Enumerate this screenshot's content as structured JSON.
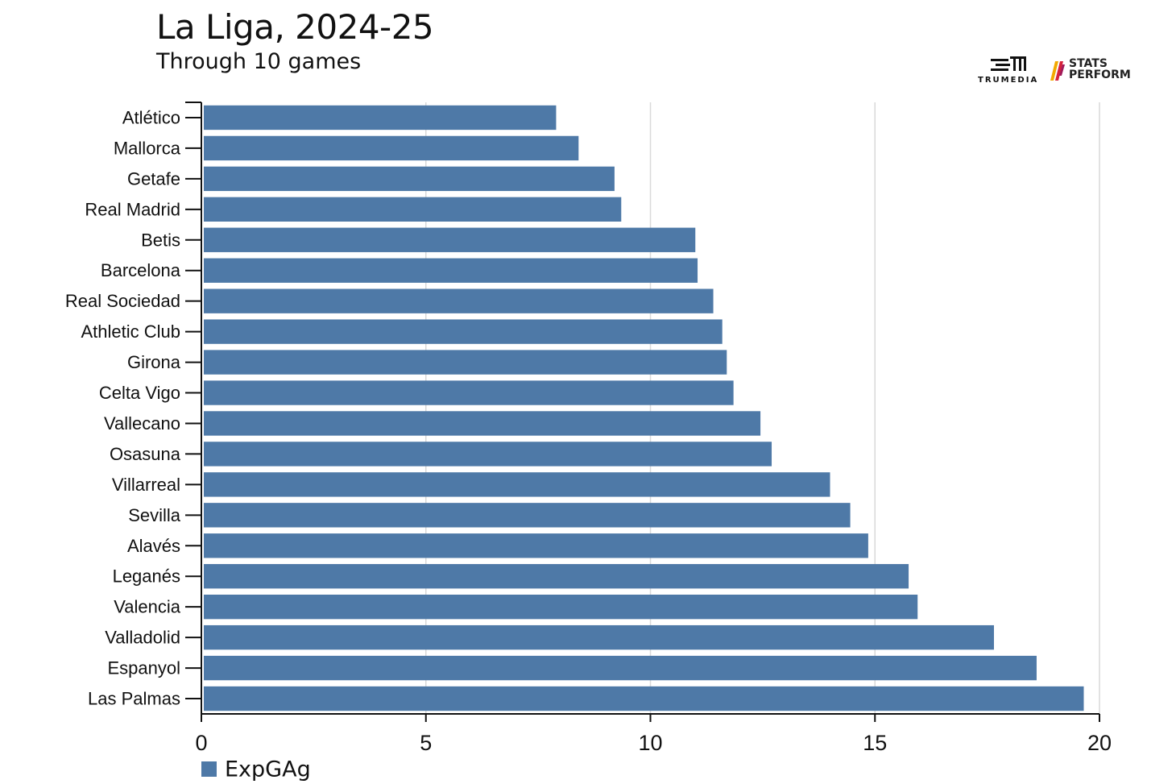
{
  "header": {
    "title": "La Liga, 2024-25",
    "subtitle": "Through 10 games"
  },
  "logos": {
    "trumedia": "TRUMEDIA",
    "stats_perform_line1": "STATS",
    "stats_perform_line2": "PERFORM"
  },
  "colors": {
    "bar": "#4e79a7",
    "axis": "#111111",
    "grid": "#d9d9d9",
    "logo_accent_1": "#f2a900",
    "logo_accent_2": "#d6223a"
  },
  "chart_data": {
    "type": "bar",
    "orientation": "horizontal",
    "title": "La Liga, 2024-25",
    "subtitle": "Through 10 games",
    "xlabel": "",
    "ylabel": "",
    "xlim": [
      0,
      20
    ],
    "x_ticks": [
      0,
      5,
      10,
      15,
      20
    ],
    "grid": "vertical",
    "legend": "bottom-left",
    "categories": [
      "Atlético",
      "Mallorca",
      "Getafe",
      "Real Madrid",
      "Betis",
      "Barcelona",
      "Real Sociedad",
      "Athletic Club",
      "Girona",
      "Celta Vigo",
      "Vallecano",
      "Osasuna",
      "Villarreal",
      "Sevilla",
      "Alavés",
      "Leganés",
      "Valencia",
      "Valladolid",
      "Espanyol",
      "Las Palmas"
    ],
    "series": [
      {
        "name": "ExpGAg",
        "values": [
          7.9,
          8.4,
          9.2,
          9.35,
          11.0,
          11.05,
          11.4,
          11.6,
          11.7,
          11.85,
          12.45,
          12.7,
          14.0,
          14.45,
          14.85,
          15.75,
          15.95,
          17.65,
          18.6,
          19.65
        ]
      }
    ]
  }
}
